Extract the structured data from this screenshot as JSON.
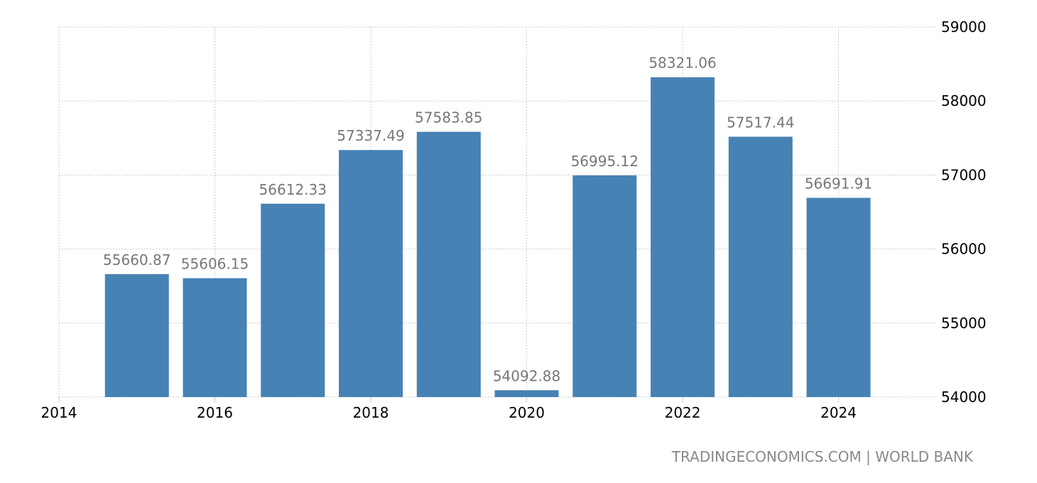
{
  "chart_data": {
    "type": "bar",
    "title": "",
    "xlabel": "",
    "ylabel": "",
    "categories": [
      "2015",
      "2016",
      "2017",
      "2018",
      "2019",
      "2020",
      "2021",
      "2022",
      "2023",
      "2024"
    ],
    "values": [
      55660.87,
      55606.15,
      56612.33,
      57337.49,
      57583.85,
      54092.88,
      56995.12,
      58321.06,
      57517.44,
      56691.91
    ],
    "value_labels": [
      "55660.87",
      "55606.15",
      "56612.33",
      "57337.49",
      "57583.85",
      "54092.88",
      "56995.12",
      "58321.06",
      "57517.44",
      "56691.91"
    ],
    "ylim": [
      54000,
      59000
    ],
    "xlim": [
      2014,
      2025.07
    ],
    "yticks": [
      "54000",
      "55000",
      "56000",
      "57000",
      "58000",
      "59000"
    ],
    "xticks": [
      "2014",
      "2016",
      "2018",
      "2020",
      "2022",
      "2024"
    ],
    "y_axis_side": "right",
    "grid": true,
    "bar_color": "#4682b4",
    "source": "TRADINGECONOMICS.COM | WORLD BANK"
  }
}
